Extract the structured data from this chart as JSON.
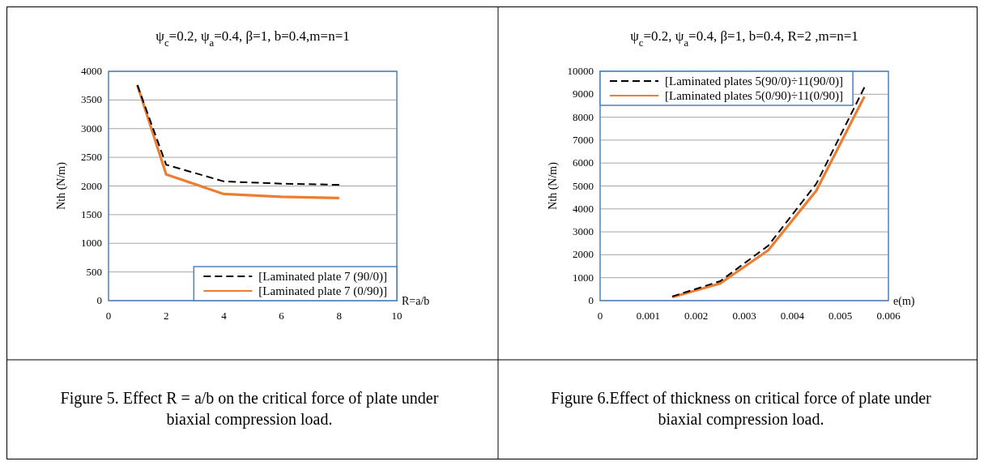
{
  "chart_data": [
    {
      "type": "line",
      "title": "ψ$_{c}$=0.2, ψ$_{a}$=0.4, β=1, b=0.4,m=n=1",
      "xlabel": "R=a/b",
      "ylabel": "Nth (N/m)",
      "x": [
        1,
        2,
        4,
        6,
        8
      ],
      "series": [
        {
          "name": "[Laminated plate 7 (90/0)]",
          "color": "#000000",
          "line_style": "dashed",
          "values": [
            3760,
            2370,
            2080,
            2040,
            2020
          ]
        },
        {
          "name": "[Laminated plate 7 (0/90)]",
          "color": "#ed7d31",
          "line_style": "solid",
          "values": [
            3760,
            2200,
            1860,
            1810,
            1790
          ]
        }
      ],
      "xlim": [
        0,
        10
      ],
      "xticks": [
        0,
        2,
        4,
        6,
        8,
        10
      ],
      "ylim": [
        0,
        4000
      ],
      "yticks": [
        0,
        500,
        1000,
        1500,
        2000,
        2500,
        3000,
        3500,
        4000
      ],
      "grid": "y",
      "legend": "bottom right",
      "annotations": [
        "Figure 5. Effect R = a/b on the critical force of plate under biaxial compression load."
      ]
    },
    {
      "type": "line",
      "title": "ψ$_{c}$=0.2, ψ$_{a}$=0.4, β=1, b=0.4, R=2 ,m=n=1",
      "xlabel": "e(m)",
      "ylabel": "Nth (N/m)",
      "x": [
        0.0015,
        0.0025,
        0.0035,
        0.0045,
        0.0055
      ],
      "series": [
        {
          "name": "[Laminated plates 5(90/0)÷11(90/0)]",
          "color": "#000000",
          "line_style": "dashed",
          "values": [
            180,
            850,
            2400,
            5100,
            9300
          ]
        },
        {
          "name": "[Laminated plates 5(0/90)÷11(0/90)]",
          "color": "#ed7d31",
          "line_style": "solid",
          "values": [
            150,
            750,
            2200,
            4800,
            8900
          ]
        }
      ],
      "xlim": [
        0,
        0.006
      ],
      "xticks": [
        0,
        0.001,
        0.002,
        0.003,
        0.004,
        0.005,
        0.006
      ],
      "ylim": [
        0,
        10000
      ],
      "yticks": [
        0,
        1000,
        2000,
        3000,
        4000,
        5000,
        6000,
        7000,
        8000,
        9000,
        10000
      ],
      "grid": "y",
      "legend": "top left",
      "annotations": [
        "Figure 6.Effect of thickness on critical force of plate under biaxial compression load."
      ]
    }
  ]
}
